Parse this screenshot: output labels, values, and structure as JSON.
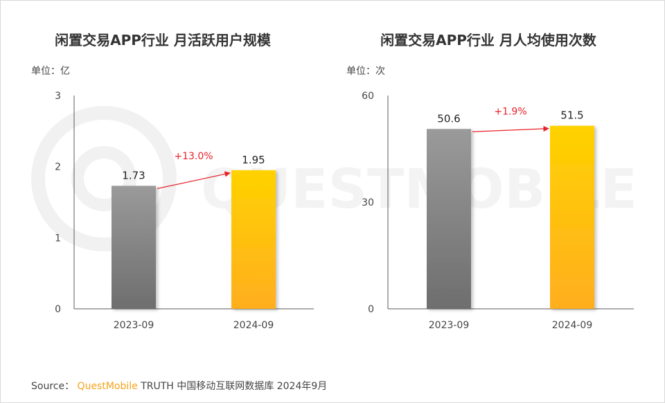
{
  "charts": [
    {
      "title": "闲置交易APP行业 月活跃用户规模",
      "unit": "单位：亿"
    },
    {
      "title": "闲置交易APP行业 月人均使用次数",
      "unit": "单位：次"
    }
  ],
  "source": {
    "prefix": "Source：",
    "brand": "QuestMobile",
    "text": "TRUTH 中国移动互联网数据库 2024年9月"
  },
  "watermark": {
    "text": "QUESTMOBILE"
  },
  "colors": {
    "bar_gray_top": "#9a9a9a",
    "bar_gray_bottom": "#6e6e6e",
    "bar_gold_top": "#ffd200",
    "bar_gold_bottom": "#ffae1f",
    "growth_arrow": "#e8212a",
    "brand": "#f7a21b"
  },
  "chart_data": [
    {
      "type": "bar",
      "title": "闲置交易APP行业 月活跃用户规模",
      "ylabel": "单位：亿",
      "categories": [
        "2023-09",
        "2024-09"
      ],
      "values": [
        1.73,
        1.95
      ],
      "value_labels": [
        "1.73",
        "1.95"
      ],
      "ylim": [
        0,
        3
      ],
      "yticks": [
        0,
        1,
        2,
        3
      ],
      "growth_label": "+13.0%",
      "grid": false,
      "legend": "none"
    },
    {
      "type": "bar",
      "title": "闲置交易APP行业 月人均使用次数",
      "ylabel": "单位：次",
      "categories": [
        "2023-09",
        "2024-09"
      ],
      "values": [
        50.6,
        51.5
      ],
      "value_labels": [
        "50.6",
        "51.5"
      ],
      "ylim": [
        0,
        60
      ],
      "yticks": [
        0,
        30,
        60
      ],
      "growth_label": "+1.9%",
      "grid": false,
      "legend": "none"
    }
  ]
}
